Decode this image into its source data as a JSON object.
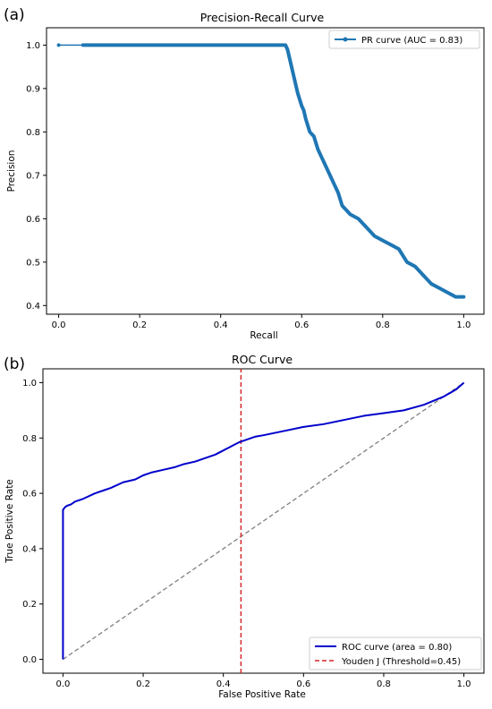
{
  "chart_data": [
    {
      "panel": "(a)",
      "type": "line",
      "title": "Precision-Recall Curve",
      "xlabel": "Recall",
      "ylabel": "Precision",
      "xlim": [
        -0.03,
        1.05
      ],
      "ylim": [
        0.38,
        1.04
      ],
      "xticks": [
        0.0,
        0.2,
        0.4,
        0.6,
        0.8,
        1.0
      ],
      "yticks": [
        0.4,
        0.5,
        0.6,
        0.7,
        0.8,
        0.9,
        1.0
      ],
      "legend_position": "top-right",
      "grid": false,
      "series": [
        {
          "name": "PR curve (AUC = 0.83)",
          "color": "#1f77b4",
          "marker": "dot",
          "x": [
            0.0,
            0.06,
            0.2,
            0.4,
            0.55,
            0.56,
            0.565,
            0.57,
            0.575,
            0.58,
            0.585,
            0.59,
            0.6,
            0.605,
            0.61,
            0.62,
            0.63,
            0.64,
            0.65,
            0.66,
            0.67,
            0.68,
            0.69,
            0.7,
            0.72,
            0.74,
            0.76,
            0.78,
            0.8,
            0.82,
            0.84,
            0.86,
            0.88,
            0.9,
            0.92,
            0.94,
            0.96,
            0.98,
            1.0
          ],
          "y": [
            1.0,
            1.0,
            1.0,
            1.0,
            1.0,
            1.0,
            0.99,
            0.97,
            0.95,
            0.93,
            0.91,
            0.89,
            0.86,
            0.85,
            0.83,
            0.8,
            0.79,
            0.76,
            0.74,
            0.72,
            0.7,
            0.68,
            0.66,
            0.63,
            0.61,
            0.6,
            0.58,
            0.56,
            0.55,
            0.54,
            0.53,
            0.5,
            0.49,
            0.47,
            0.45,
            0.44,
            0.43,
            0.42,
            0.42
          ]
        }
      ]
    },
    {
      "panel": "(b)",
      "type": "line",
      "title": "ROC Curve",
      "xlabel": "False Positive Rate",
      "ylabel": "True Positive Rate",
      "xlim": [
        -0.05,
        1.05
      ],
      "ylim": [
        -0.05,
        1.05
      ],
      "xticks": [
        0.0,
        0.2,
        0.4,
        0.6,
        0.8,
        1.0
      ],
      "yticks": [
        0.0,
        0.2,
        0.4,
        0.6,
        0.8,
        1.0
      ],
      "legend_position": "bottom-right",
      "grid": false,
      "series": [
        {
          "name": "ROC curve (area = 0.80)",
          "color": "#0000cc",
          "style": "solid",
          "x": [
            0.0,
            0.0,
            0.005,
            0.01,
            0.02,
            0.03,
            0.05,
            0.08,
            0.1,
            0.12,
            0.15,
            0.18,
            0.2,
            0.22,
            0.25,
            0.28,
            0.3,
            0.33,
            0.35,
            0.38,
            0.4,
            0.42,
            0.44,
            0.46,
            0.48,
            0.5,
            0.55,
            0.6,
            0.65,
            0.7,
            0.75,
            0.8,
            0.85,
            0.9,
            0.95,
            0.98,
            1.0
          ],
          "y": [
            0.0,
            0.54,
            0.55,
            0.555,
            0.56,
            0.57,
            0.58,
            0.6,
            0.61,
            0.62,
            0.64,
            0.65,
            0.665,
            0.675,
            0.685,
            0.695,
            0.705,
            0.715,
            0.725,
            0.74,
            0.755,
            0.77,
            0.785,
            0.795,
            0.805,
            0.81,
            0.825,
            0.84,
            0.85,
            0.865,
            0.88,
            0.89,
            0.9,
            0.92,
            0.95,
            0.975,
            1.0
          ]
        },
        {
          "name": "Youden J (Threshold=0.45)",
          "color": "#d62728",
          "style": "dashed",
          "x": [
            0.444,
            0.444
          ],
          "y": [
            -0.05,
            1.05
          ]
        },
        {
          "name": "",
          "color": "#808080",
          "style": "dashed",
          "x": [
            0.0,
            1.0
          ],
          "y": [
            0.0,
            1.0
          ]
        }
      ]
    }
  ]
}
